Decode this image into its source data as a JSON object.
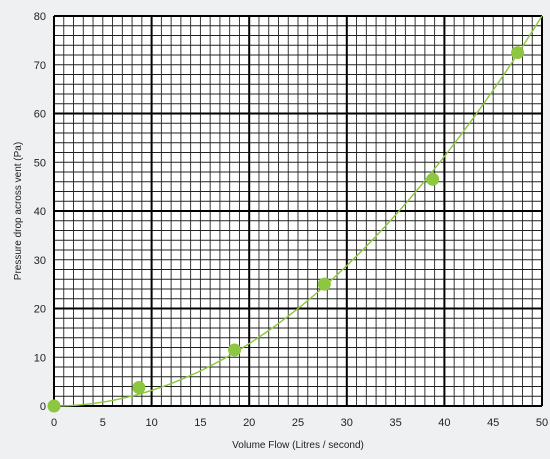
{
  "chart_data": {
    "type": "scatter",
    "title": "",
    "xlabel": "Volume Flow (Litres / second)",
    "ylabel": "Pressure drop across vent (Pa)",
    "xlim": [
      0,
      50
    ],
    "ylim": [
      0,
      80
    ],
    "x_ticks": [
      0,
      5,
      10,
      15,
      20,
      25,
      30,
      35,
      40,
      45,
      50
    ],
    "x_tick_labels": [
      "0",
      "5",
      "10",
      "15",
      "20",
      "25",
      "30",
      "35",
      "40",
      "45",
      "50"
    ],
    "y_ticks": [
      0,
      10,
      20,
      30,
      40,
      50,
      60,
      70,
      80
    ],
    "y_tick_labels": [
      "0",
      "10",
      "20",
      "30",
      "40",
      "50",
      "60",
      "70",
      "80"
    ],
    "grid": true,
    "minor_grid_step_x": 1,
    "minor_grid_step_y": 2,
    "major_grid_step_x": 10,
    "major_grid_step_y": 20,
    "legend": "none",
    "series": [
      {
        "type": "scatter",
        "color": "#8dc63f",
        "points": [
          {
            "x": 0,
            "y": 0
          },
          {
            "x": 8.7,
            "y": 3.8
          },
          {
            "x": 18.5,
            "y": 11.5
          },
          {
            "x": 27.7,
            "y": 25
          },
          {
            "x": 38.8,
            "y": 46.5
          },
          {
            "x": 47.5,
            "y": 72.5
          }
        ]
      },
      {
        "type": "line",
        "color": "#8dc63f",
        "fit": "quadratic",
        "coefficient": 0.032,
        "x_range": [
          0,
          50
        ]
      }
    ]
  }
}
